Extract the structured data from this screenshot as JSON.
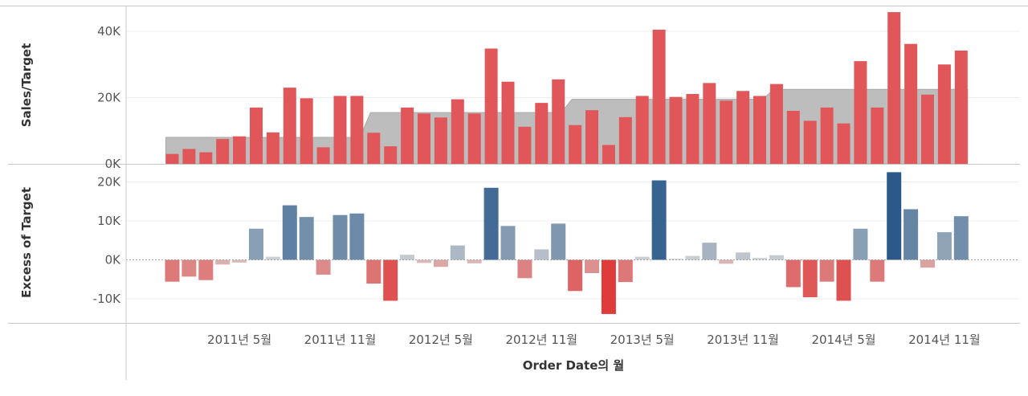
{
  "chart_data": [
    {
      "type": "bar",
      "ylabel": "Sales/Target",
      "ylim": [
        0,
        46000
      ],
      "yticks": [
        0,
        20000,
        40000
      ],
      "ytick_labels": [
        "0K",
        "20K",
        "40K"
      ],
      "grid": true,
      "series": [
        {
          "kind": "area",
          "color": "#bdbdbd",
          "values": [
            8000,
            8000,
            8000,
            8000,
            8000,
            8000,
            8000,
            8000,
            8000,
            8000,
            8000,
            8000,
            15500,
            15500,
            15500,
            15500,
            15500,
            15500,
            15500,
            15500,
            15500,
            15500,
            15500,
            15500,
            19500,
            19500,
            19500,
            19500,
            19500,
            19500,
            19500,
            19500,
            19500,
            19500,
            19500,
            19500,
            22500,
            22500,
            22500,
            22500,
            22500,
            22500,
            22500,
            22500,
            22500,
            22500,
            22500,
            22500
          ]
        },
        {
          "kind": "bar",
          "color": "#e15759",
          "values": [
            3000,
            4500,
            3500,
            7500,
            8300,
            17000,
            9500,
            23000,
            19800,
            5000,
            20500,
            20500,
            9400,
            5300,
            17000,
            15200,
            14000,
            19500,
            15200,
            34800,
            24800,
            11200,
            18400,
            25500,
            11700,
            16200,
            5700,
            14100,
            20500,
            40500,
            20200,
            21100,
            24400,
            19100,
            22000,
            20500,
            24100,
            16000,
            13000,
            17000,
            12200,
            31000,
            17000,
            45800,
            36200,
            20900,
            30000,
            34200
          ]
        }
      ]
    },
    {
      "type": "bar",
      "ylabel": "Excess of Target",
      "ylim": [
        -15000,
        23000
      ],
      "yticks": [
        -10000,
        0,
        10000,
        20000
      ],
      "ytick_labels": [
        "-10K",
        "0K",
        "10K",
        "20K"
      ],
      "grid": true,
      "zero_line": true,
      "xlabel": "Order Date의 월",
      "x_tick_labels": [
        "2011년 5월",
        "2011년 11월",
        "2012년 5월",
        "2012년 11월",
        "2013년 5월",
        "2013년 11월",
        "2014년 5월",
        "2014년 11월"
      ],
      "x_tick_indices": [
        4,
        10,
        16,
        22,
        28,
        34,
        40,
        46
      ],
      "color_scale": {
        "negative": "#e03a3a",
        "neutral": "#d9d9d9",
        "positive": "#2b5a8a"
      },
      "values": [
        -5600,
        -4300,
        -5200,
        -1200,
        -700,
        8000,
        800,
        14000,
        11000,
        -3800,
        11500,
        11900,
        -6100,
        -10500,
        1300,
        -800,
        -1800,
        3700,
        -900,
        18500,
        8700,
        -4700,
        2700,
        9300,
        -8000,
        -3400,
        -13900,
        -5700,
        800,
        20400,
        300,
        1000,
        4400,
        -1000,
        1900,
        500,
        1200,
        -7000,
        -9600,
        -5600,
        -10500,
        8000,
        -5600,
        22500,
        13000,
        -2000,
        7100,
        11200
      ]
    }
  ]
}
